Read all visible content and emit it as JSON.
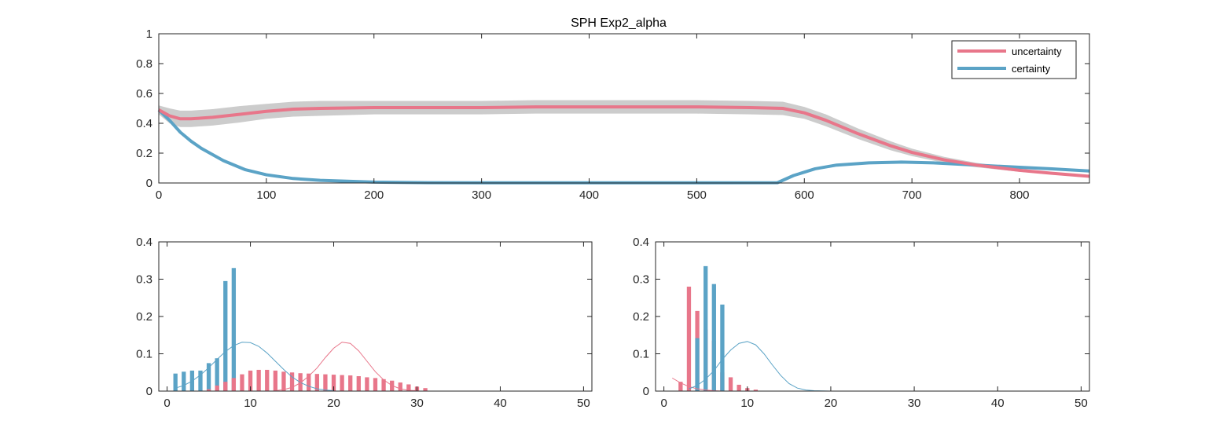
{
  "figure": {
    "title": "SPH  Exp2_alpha"
  },
  "colors": {
    "uncertainty": "#e8768a",
    "certainty": "#5ba3c6",
    "band": "#cccccc",
    "axis": "#262626"
  },
  "legend": {
    "items": [
      "uncertainty",
      "certainty"
    ],
    "location": "top-right"
  },
  "chart_data": [
    {
      "type": "line",
      "title": "SPH  Exp2_alpha",
      "xlim": [
        0,
        865
      ],
      "ylim": [
        0,
        1
      ],
      "xticks": [
        0,
        100,
        200,
        300,
        400,
        500,
        600,
        700,
        800
      ],
      "yticks": [
        0,
        0.2,
        0.4,
        0.6,
        0.8,
        1
      ],
      "ytick_labels": [
        "0",
        "0.2",
        "0.4",
        "0.6",
        "0.8",
        "1"
      ],
      "legend_location": "top-right",
      "series": [
        {
          "name": "uncertainty",
          "x": [
            0,
            10,
            20,
            30,
            50,
            75,
            100,
            125,
            150,
            200,
            250,
            300,
            350,
            400,
            450,
            500,
            550,
            580,
            600,
            620,
            650,
            680,
            700,
            730,
            760,
            800,
            830,
            865
          ],
          "y": [
            0.49,
            0.45,
            0.43,
            0.43,
            0.44,
            0.46,
            0.48,
            0.495,
            0.5,
            0.505,
            0.505,
            0.505,
            0.51,
            0.51,
            0.51,
            0.51,
            0.505,
            0.5,
            0.47,
            0.42,
            0.33,
            0.25,
            0.205,
            0.155,
            0.12,
            0.085,
            0.065,
            0.045
          ],
          "band_half_width": [
            0.03,
            0.05,
            0.055,
            0.055,
            0.055,
            0.055,
            0.05,
            0.05,
            0.05,
            0.045,
            0.045,
            0.045,
            0.045,
            0.045,
            0.045,
            0.045,
            0.045,
            0.045,
            0.04,
            0.04,
            0.035,
            0.03,
            0.025,
            0.02,
            0.015,
            0.01,
            0.008,
            0.006
          ]
        },
        {
          "name": "certainty",
          "x": [
            0,
            10,
            20,
            30,
            40,
            60,
            80,
            100,
            125,
            150,
            200,
            250,
            300,
            400,
            500,
            575,
            590,
            610,
            630,
            660,
            690,
            720,
            760,
            800,
            830,
            865
          ],
          "y": [
            0.49,
            0.42,
            0.34,
            0.28,
            0.23,
            0.15,
            0.09,
            0.055,
            0.03,
            0.018,
            0.006,
            0.002,
            0.001,
            0.001,
            0.001,
            0.002,
            0.05,
            0.095,
            0.12,
            0.135,
            0.14,
            0.135,
            0.12,
            0.105,
            0.095,
            0.08
          ],
          "band_half_width": [
            0.01,
            0.012,
            0.012,
            0.01,
            0.01,
            0.008,
            0.006,
            0.005,
            0.004,
            0.003,
            0.002,
            0.001,
            0.001,
            0.001,
            0.001,
            0.001,
            0.008,
            0.008,
            0.006,
            0.005,
            0.005,
            0.005,
            0.004,
            0.004,
            0.004,
            0.004
          ]
        }
      ]
    },
    {
      "type": "bar",
      "xlim": [
        -1,
        51
      ],
      "ylim": [
        0,
        0.4
      ],
      "xticks": [
        0,
        10,
        20,
        30,
        40,
        50
      ],
      "yticks": [
        0,
        0.1,
        0.2,
        0.3,
        0.4
      ],
      "ytick_labels": [
        "0",
        "0.1",
        "0.2",
        "0.3",
        "0.4"
      ],
      "series": [
        {
          "name": "certainty",
          "x": [
            1,
            2,
            3,
            4,
            5,
            6,
            7,
            8
          ],
          "values": [
            0.047,
            0.052,
            0.055,
            0.055,
            0.075,
            0.088,
            0.295,
            0.33
          ]
        },
        {
          "name": "uncertainty",
          "x": [
            5,
            6,
            7,
            8,
            9,
            10,
            11,
            12,
            13,
            14,
            15,
            16,
            17,
            18,
            19,
            20,
            21,
            22,
            23,
            24,
            25,
            26,
            27,
            28,
            29,
            30,
            31
          ],
          "values": [
            0.005,
            0.015,
            0.025,
            0.035,
            0.045,
            0.055,
            0.057,
            0.057,
            0.055,
            0.052,
            0.05,
            0.048,
            0.047,
            0.046,
            0.045,
            0.044,
            0.043,
            0.042,
            0.04,
            0.037,
            0.035,
            0.032,
            0.028,
            0.023,
            0.018,
            0.012,
            0.008
          ]
        }
      ],
      "fit_curves": [
        {
          "name": "certainty",
          "x": [
            1,
            2,
            3,
            4,
            5,
            6,
            7,
            8,
            9,
            10,
            11,
            12,
            13,
            14,
            15,
            16,
            17,
            18,
            19,
            20
          ],
          "y": [
            0.008,
            0.015,
            0.027,
            0.043,
            0.063,
            0.085,
            0.106,
            0.122,
            0.131,
            0.13,
            0.12,
            0.102,
            0.08,
            0.058,
            0.038,
            0.023,
            0.013,
            0.006,
            0.003,
            0.001
          ]
        },
        {
          "name": "uncertainty",
          "x": [
            13,
            14,
            15,
            16,
            17,
            18,
            19,
            20,
            21,
            22,
            23,
            24,
            25,
            26,
            27,
            28,
            29,
            30
          ],
          "y": [
            0.001,
            0.004,
            0.01,
            0.022,
            0.04,
            0.062,
            0.09,
            0.115,
            0.131,
            0.128,
            0.108,
            0.08,
            0.052,
            0.03,
            0.015,
            0.006,
            0.002,
            0.001
          ]
        }
      ]
    },
    {
      "type": "bar",
      "xlim": [
        -1,
        51
      ],
      "ylim": [
        0,
        0.4
      ],
      "xticks": [
        0,
        10,
        20,
        30,
        40,
        50
      ],
      "yticks": [
        0,
        0.1,
        0.2,
        0.3,
        0.4
      ],
      "ytick_labels": [
        "0",
        "0.1",
        "0.2",
        "0.3",
        "0.4"
      ],
      "series": [
        {
          "name": "uncertainty",
          "x": [
            2,
            3,
            4,
            5,
            6,
            7,
            8,
            9,
            10,
            11
          ],
          "values": [
            0.025,
            0.28,
            0.215,
            0.165,
            0.135,
            0.05,
            0.037,
            0.017,
            0.008,
            0.004
          ]
        },
        {
          "name": "certainty",
          "x": [
            4,
            5,
            6,
            7
          ],
          "values": [
            0.142,
            0.335,
            0.287,
            0.232
          ]
        }
      ],
      "fit_curves": [
        {
          "name": "uncertainty",
          "x": [
            1,
            2,
            3,
            4,
            5,
            6,
            7,
            8,
            9,
            10
          ],
          "y": [
            0.035,
            0.022,
            0.012,
            0.006,
            0.003,
            0.001,
            0.0,
            0.0,
            0.0,
            0.0
          ]
        },
        {
          "name": "certainty",
          "x": [
            3,
            4,
            5,
            6,
            7,
            8,
            9,
            10,
            11,
            12,
            13,
            14,
            15,
            16,
            17,
            18,
            20,
            30,
            40,
            50
          ],
          "y": [
            0.006,
            0.015,
            0.032,
            0.055,
            0.085,
            0.11,
            0.128,
            0.133,
            0.124,
            0.1,
            0.07,
            0.042,
            0.02,
            0.008,
            0.003,
            0.001,
            0.0,
            0.0,
            0.0,
            0.0
          ]
        }
      ]
    }
  ]
}
